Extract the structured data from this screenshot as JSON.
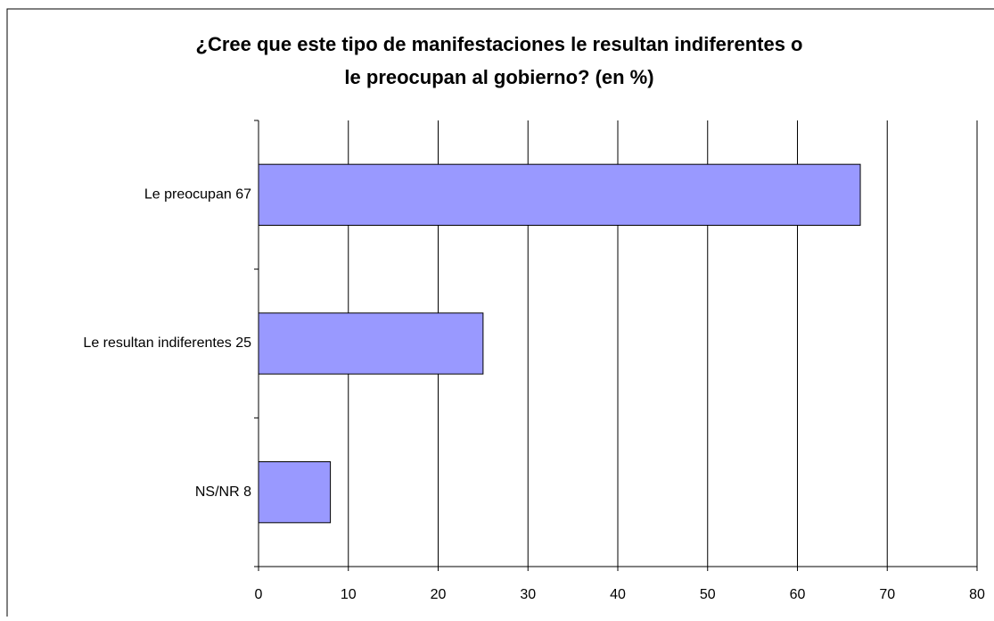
{
  "chart_data": {
    "type": "bar",
    "orientation": "horizontal",
    "title": [
      "¿Cree que este tipo de manifestaciones le resultan indiferentes o",
      "le preocupan al gobierno? (en %)"
    ],
    "categories": [
      "Le preocupan 67",
      "Le resultan indiferentes  25",
      "NS/NR  8"
    ],
    "values": [
      67,
      25,
      8
    ],
    "color": "#9999ff",
    "xlim": [
      0,
      80
    ],
    "xticks": [
      0,
      10,
      20,
      30,
      40,
      50,
      60,
      70,
      80
    ],
    "grid": true
  }
}
